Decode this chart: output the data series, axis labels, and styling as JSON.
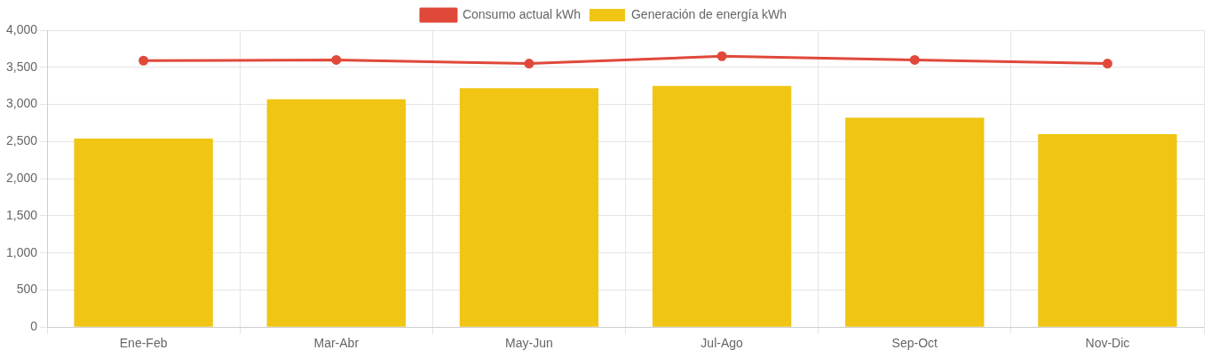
{
  "chart_data": {
    "type": "bar",
    "categories": [
      "Ene-Feb",
      "Mar-Abr",
      "May-Jun",
      "Jul-Ago",
      "Sep-Oct",
      "Nov-Dic"
    ],
    "series": [
      {
        "name": "Consumo actual kWh",
        "type": "line",
        "color": "#e0493a",
        "values": [
          3590,
          3600,
          3550,
          3650,
          3600,
          3550
        ]
      },
      {
        "name": "Generación de energía kWh",
        "color": "#f0c513",
        "values": [
          2540,
          3070,
          3220,
          3250,
          2820,
          2600
        ]
      }
    ],
    "ylim": [
      0,
      4000
    ],
    "yticks": [
      0,
      500,
      {
        "value": 1000,
        "label": "1,000"
      },
      {
        "value": 1500,
        "label": "1,500"
      },
      {
        "value": 2000,
        "label": "2,000"
      },
      {
        "value": 2500,
        "label": "2,500"
      },
      {
        "value": 3000,
        "label": "3,000"
      },
      {
        "value": 3500,
        "label": "3,500"
      },
      {
        "value": 4000,
        "label": "4,000"
      }
    ],
    "grid": true,
    "legend": "top",
    "marker": "circle",
    "line_style": "solid"
  }
}
